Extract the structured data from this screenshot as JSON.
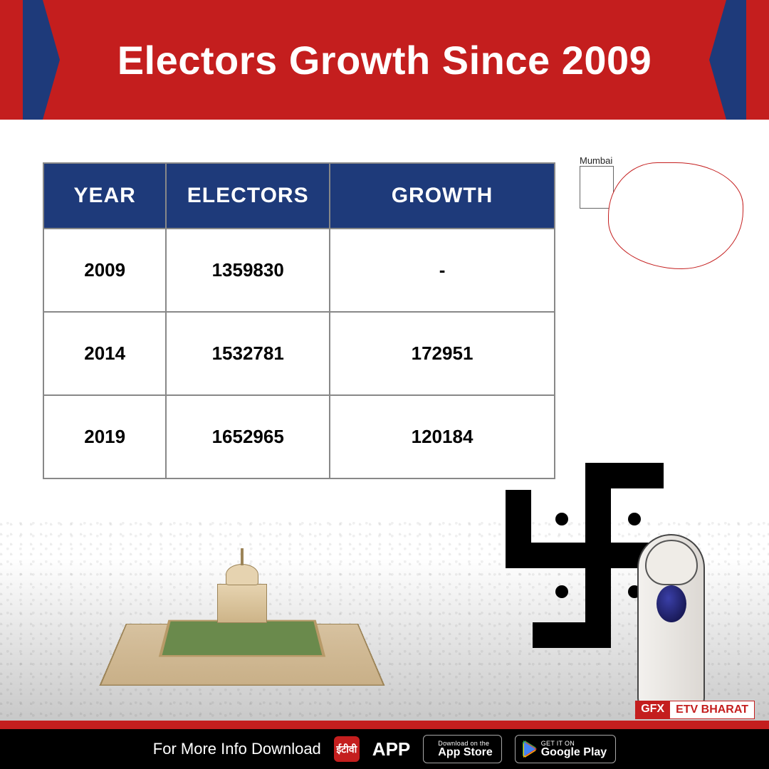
{
  "header": {
    "title": "Electors Growth Since 2009",
    "band_color": "#c41e1e",
    "notch_color": "#1e3a7a",
    "title_color": "#ffffff",
    "title_fontsize": 56
  },
  "table": {
    "type": "table",
    "header_bg": "#1e3a7a",
    "header_color": "#ffffff",
    "border_color": "#888888",
    "cell_bg": "#ffffff",
    "cell_color": "#000000",
    "header_fontsize": 30,
    "cell_fontsize": 26,
    "columns": [
      {
        "key": "year",
        "label": "YEAR",
        "width_pct": 24
      },
      {
        "key": "electors",
        "label": "ELECTORS",
        "width_pct": 32
      },
      {
        "key": "growth",
        "label": "GROWTH",
        "width_pct": 44
      }
    ],
    "rows": [
      {
        "year": "2009",
        "electors": "1359830",
        "growth": "-"
      },
      {
        "year": "2014",
        "electors": "1532781",
        "growth": "172951"
      },
      {
        "year": "2019",
        "electors": "1652965",
        "growth": "120184"
      }
    ]
  },
  "map": {
    "label": "Mumbai",
    "outline_color": "#c41e1e"
  },
  "graphics": {
    "parliament_colors": {
      "wall": "#d7c2a0",
      "trim": "#9c8458",
      "green": "#6a8a4c"
    },
    "swastik_color": "#000000",
    "ink_color": "#1a1b5a"
  },
  "tag": {
    "gfx": "GFX",
    "brand": "ETV BHARAT",
    "gfx_bg": "#c41e1e",
    "brand_color": "#c41e1e"
  },
  "footer": {
    "bg": "#000000",
    "text": "For More Info Download",
    "app_word": "APP",
    "appstore": {
      "small": "Download on the",
      "big": "App Store"
    },
    "play": {
      "small": "GET IT ON",
      "big": "Google Play"
    }
  }
}
